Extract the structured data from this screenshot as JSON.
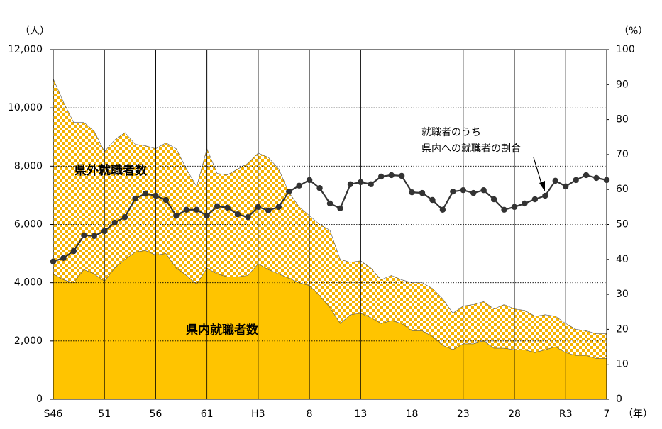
{
  "chart_data": {
    "type": "stacked-area-line",
    "y_unit": "（人）",
    "y2_unit": "（%）",
    "x_unit": "（年）",
    "categories": [
      "S46",
      null,
      null,
      null,
      null,
      "51",
      null,
      null,
      null,
      null,
      "56",
      null,
      null,
      null,
      null,
      "61",
      null,
      null,
      null,
      null,
      "H3",
      null,
      null,
      null,
      null,
      "8",
      null,
      null,
      null,
      null,
      "13",
      null,
      null,
      null,
      null,
      "18",
      null,
      null,
      null,
      null,
      "23",
      null,
      null,
      null,
      null,
      "28",
      null,
      null,
      null,
      null,
      "R3",
      null,
      null,
      null,
      "7"
    ],
    "series": [
      {
        "name": "県内就職者数",
        "color": "#ffc400",
        "fill": "solid",
        "values": [
          4300,
          4100,
          4000,
          4450,
          4300,
          4050,
          4500,
          4800,
          5050,
          5100,
          4950,
          5000,
          4500,
          4250,
          3950,
          4500,
          4300,
          4200,
          4200,
          4250,
          4650,
          4450,
          4300,
          4150,
          4000,
          3900,
          3550,
          3150,
          2600,
          2900,
          2950,
          2800,
          2600,
          2700,
          2600,
          2350,
          2350,
          2150,
          1850,
          1700,
          1900,
          1900,
          2000,
          1750,
          1750,
          1700,
          1700,
          1600,
          1700,
          1800,
          1600,
          1500,
          1500,
          1400,
          1400
        ]
      },
      {
        "name": "県外就職者数",
        "color": "#f5b200",
        "fill": "checker",
        "values": [
          6700,
          6100,
          5500,
          5050,
          4900,
          4450,
          4400,
          4350,
          3700,
          3600,
          3650,
          3800,
          4100,
          3650,
          3350,
          4100,
          3450,
          3500,
          3700,
          3850,
          3800,
          3850,
          3600,
          2950,
          2600,
          2400,
          2450,
          2650,
          2200,
          1800,
          1800,
          1700,
          1500,
          1550,
          1500,
          1650,
          1650,
          1650,
          1600,
          1250,
          1300,
          1350,
          1350,
          1350,
          1500,
          1400,
          1350,
          1250,
          1200,
          1050,
          1000,
          900,
          850,
          850,
          850
        ]
      },
      {
        "name": [
          "就職者のうち",
          "県内への就職者の割合"
        ],
        "color": "#333333",
        "axis": "y2",
        "values": [
          39.4,
          40.4,
          42.4,
          46.9,
          46.7,
          48.1,
          50.5,
          52.1,
          57.4,
          58.8,
          58.2,
          57.0,
          52.5,
          54.2,
          54.2,
          52.5,
          55.2,
          54.8,
          52.9,
          52.1,
          55.0,
          54.0,
          55.0,
          59.4,
          61.1,
          62.7,
          60.4,
          56.0,
          54.6,
          61.5,
          62.1,
          61.5,
          63.7,
          64.1,
          63.9,
          59.2,
          59.0,
          57.0,
          54.2,
          59.4,
          59.8,
          59.0,
          59.8,
          57.2,
          54.2,
          55.0,
          56.0,
          57.2,
          58.2,
          62.5,
          60.9,
          62.7,
          64.1,
          63.3,
          62.7
        ]
      }
    ],
    "ylim": [
      0,
      12000
    ],
    "yticks": [
      0,
      {
        "value": 2000,
        "label": "2,000"
      },
      {
        "value": 4000,
        "label": "4,000"
      },
      {
        "value": 6000,
        "label": "6,000"
      },
      {
        "value": 8000,
        "label": "8,000"
      },
      {
        "value": 10000,
        "label": "10,000"
      },
      {
        "value": 12000,
        "label": "12,000"
      }
    ],
    "y2lim": [
      0,
      100
    ],
    "y2ticks": [
      0,
      10,
      20,
      30,
      40,
      50,
      60,
      70,
      80,
      90,
      100
    ],
    "grid": true
  }
}
